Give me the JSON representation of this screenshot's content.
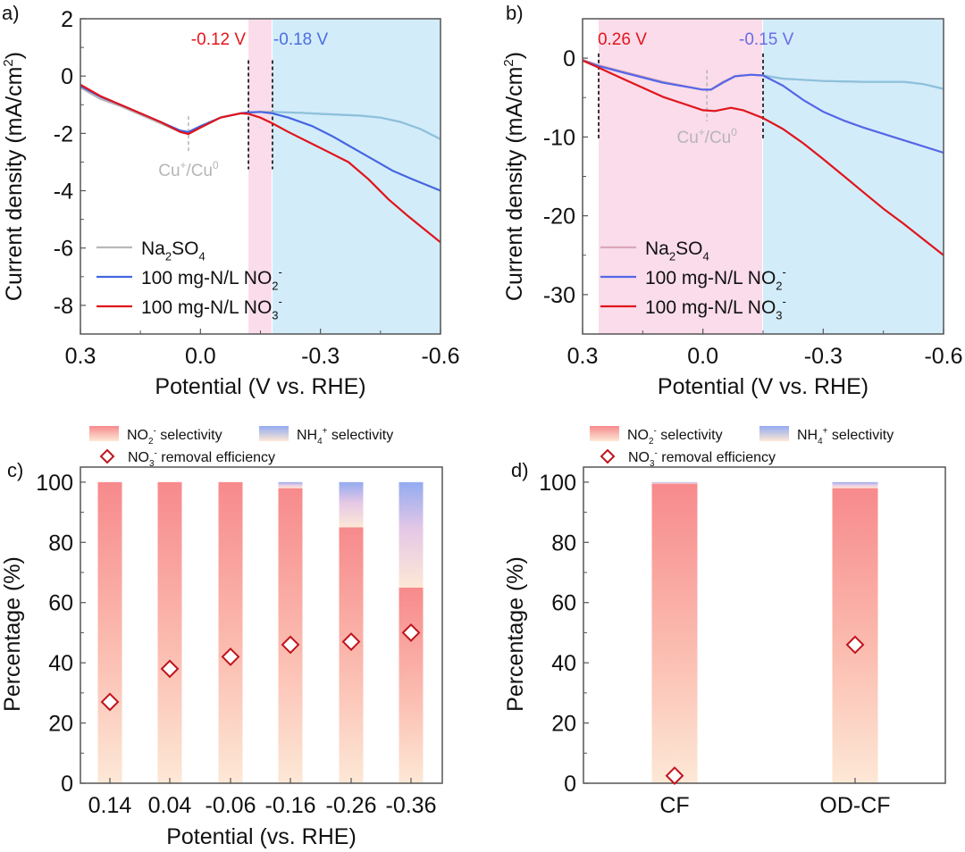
{
  "chart_data": [
    {
      "panel": "a)",
      "type": "line",
      "xlabel": "Potential (V vs. RHE)",
      "ylabel": "Current density (mA/cm²)",
      "xlim": [
        0.3,
        -0.6
      ],
      "ylim": [
        -9,
        2
      ],
      "xticks": [
        "0.3",
        "0.0",
        "-0.3",
        "-0.6"
      ],
      "xtick_values": [
        0.3,
        0.0,
        -0.3,
        -0.6
      ],
      "yticks": [
        "2",
        "0",
        "-2",
        "-4",
        "-6",
        "-8"
      ],
      "ytick_values": [
        2,
        0,
        -2,
        -4,
        -6,
        -8
      ],
      "regions": [
        {
          "name": "pink",
          "from": -0.12,
          "to": -0.18,
          "color": "#fadcea"
        },
        {
          "name": "blue",
          "from": -0.18,
          "to": -0.6,
          "color": "#d3ecfa"
        }
      ],
      "onset_labels": [
        {
          "text": "-0.12 V",
          "x": -0.12,
          "color": "#e5141b"
        },
        {
          "text": "-0.18 V",
          "x": -0.18,
          "color": "#4a6ee0"
        }
      ],
      "annotation": {
        "text": "Cu⁺/Cu⁰",
        "x": 0.03
      },
      "legend": [
        "Na₂SO₄",
        "100 mg-N/L NO₂⁻",
        "100 mg-N/L NO₃⁻"
      ],
      "series": [
        {
          "name": "Na₂SO₄",
          "color": "#b8b8b8",
          "color_after": "#8cc2de",
          "x": [
            0.3,
            0.25,
            0.2,
            0.15,
            0.1,
            0.05,
            0.03,
            0.0,
            -0.05,
            -0.1,
            -0.12,
            -0.15,
            -0.18,
            -0.25,
            -0.3,
            -0.35,
            -0.4,
            -0.45,
            -0.5,
            -0.55,
            -0.6
          ],
          "y": [
            -0.4,
            -0.8,
            -1.05,
            -1.35,
            -1.65,
            -1.95,
            -2.0,
            -1.8,
            -1.45,
            -1.3,
            -1.28,
            -1.25,
            -1.25,
            -1.28,
            -1.32,
            -1.35,
            -1.38,
            -1.45,
            -1.6,
            -1.85,
            -2.2
          ]
        },
        {
          "name": "100 mg-N/L NO₂⁻",
          "color": "#4466e0",
          "x": [
            0.3,
            0.25,
            0.2,
            0.15,
            0.1,
            0.05,
            0.03,
            0.0,
            -0.05,
            -0.1,
            -0.12,
            -0.15,
            -0.18,
            -0.22,
            -0.28,
            -0.33,
            -0.38,
            -0.43,
            -0.48,
            -0.53,
            -0.6
          ],
          "y": [
            -0.35,
            -0.72,
            -1.0,
            -1.3,
            -1.6,
            -1.9,
            -1.95,
            -1.75,
            -1.45,
            -1.3,
            -1.27,
            -1.25,
            -1.3,
            -1.45,
            -1.75,
            -2.1,
            -2.5,
            -2.9,
            -3.3,
            -3.6,
            -4.0
          ]
        },
        {
          "name": "100 mg-N/L NO₃⁻",
          "color": "#e0141b",
          "x": [
            0.3,
            0.25,
            0.2,
            0.15,
            0.1,
            0.05,
            0.03,
            0.0,
            -0.05,
            -0.1,
            -0.12,
            -0.15,
            -0.18,
            -0.22,
            -0.27,
            -0.32,
            -0.37,
            -0.42,
            -0.47,
            -0.52,
            -0.56,
            -0.6
          ],
          "y": [
            -0.3,
            -0.7,
            -1.0,
            -1.3,
            -1.6,
            -1.95,
            -2.02,
            -1.8,
            -1.45,
            -1.3,
            -1.32,
            -1.45,
            -1.65,
            -1.95,
            -2.3,
            -2.65,
            -3.0,
            -3.6,
            -4.3,
            -4.9,
            -5.35,
            -5.8
          ]
        }
      ]
    },
    {
      "panel": "b)",
      "type": "line",
      "xlabel": "Potential (V vs. RHE)",
      "ylabel": "Current density (mA/cm²)",
      "xlim": [
        0.3,
        -0.6
      ],
      "ylim": [
        -35,
        5
      ],
      "xticks": [
        "0.3",
        "0.0",
        "-0.3",
        "-0.6"
      ],
      "xtick_values": [
        0.3,
        0.0,
        -0.3,
        -0.6
      ],
      "yticks": [
        "0",
        "-10",
        "-20",
        "-30"
      ],
      "ytick_values": [
        0,
        -10,
        -20,
        -30
      ],
      "regions": [
        {
          "name": "pink",
          "from": 0.26,
          "to": -0.15,
          "color": "#fadcea"
        },
        {
          "name": "blue",
          "from": -0.15,
          "to": -0.6,
          "color": "#d3ecfa"
        }
      ],
      "onset_labels": [
        {
          "text": "0.26 V",
          "x": 0.26,
          "color": "#e5141b"
        },
        {
          "text": "-0.15 V",
          "x": -0.15,
          "color": "#6a6ae6"
        }
      ],
      "annotation": {
        "text": "Cu⁺/Cu⁰",
        "x": -0.01
      },
      "legend": [
        "Na₂SO₄",
        "100 mg-N/L NO₂⁻",
        "100 mg-N/L NO₃⁻"
      ],
      "series": [
        {
          "name": "Na₂SO₄",
          "color": "#d9a8b8",
          "color_after": "#8cc2de",
          "x": [
            0.3,
            0.26,
            0.2,
            0.1,
            0.0,
            -0.02,
            -0.05,
            -0.08,
            -0.12,
            -0.15,
            -0.2,
            -0.3,
            -0.4,
            -0.5,
            -0.55,
            -0.6
          ],
          "y": [
            -0.2,
            -0.9,
            -1.7,
            -3.0,
            -4.0,
            -4.0,
            -3.0,
            -2.3,
            -2.1,
            -2.2,
            -2.6,
            -2.9,
            -3.0,
            -3.0,
            -3.3,
            -3.9
          ]
        },
        {
          "name": "100 mg-N/L NO₂⁻",
          "color": "#5566e6",
          "x": [
            0.3,
            0.26,
            0.2,
            0.1,
            0.0,
            -0.02,
            -0.05,
            -0.08,
            -0.12,
            -0.15,
            -0.2,
            -0.25,
            -0.3,
            -0.35,
            -0.4,
            -0.5,
            -0.6
          ],
          "y": [
            -0.3,
            -1.0,
            -1.8,
            -3.1,
            -4.0,
            -4.0,
            -3.1,
            -2.3,
            -2.1,
            -2.2,
            -3.5,
            -5.3,
            -6.8,
            -7.9,
            -8.8,
            -10.4,
            -12.0
          ]
        },
        {
          "name": "100 mg-N/L NO₃⁻",
          "color": "#e0141b",
          "x": [
            0.3,
            0.26,
            0.2,
            0.1,
            0.0,
            -0.03,
            -0.07,
            -0.1,
            -0.15,
            -0.2,
            -0.25,
            -0.3,
            -0.35,
            -0.4,
            -0.45,
            -0.5,
            -0.55,
            -0.6
          ],
          "y": [
            -0.3,
            -1.2,
            -2.6,
            -4.9,
            -6.6,
            -6.7,
            -6.3,
            -6.6,
            -7.6,
            -9.0,
            -10.8,
            -12.8,
            -14.9,
            -17.0,
            -19.1,
            -21.0,
            -23.0,
            -25.0
          ]
        }
      ]
    },
    {
      "panel": "c)",
      "type": "bar",
      "stacked": true,
      "xlabel": "Potential (vs. RHE)",
      "ylabel": "Percentage (%)",
      "ylim": [
        0,
        105
      ],
      "yticks": [
        "0",
        "20",
        "40",
        "60",
        "80",
        "100"
      ],
      "ytick_values": [
        0,
        20,
        40,
        60,
        80,
        100
      ],
      "categories": [
        "0.14",
        "0.04",
        "-0.06",
        "-0.16",
        "-0.26",
        "-0.36"
      ],
      "series": [
        {
          "name": "NO₂⁻ selectivity",
          "values": [
            100,
            100,
            100,
            98,
            85,
            65
          ]
        },
        {
          "name": "NH₄⁺ selectivity",
          "values": [
            0,
            0,
            0,
            2,
            15,
            35
          ]
        },
        {
          "name": "NO₃⁻ removal efficiency",
          "marker": "diamond",
          "values": [
            27,
            38,
            42,
            46,
            47,
            50
          ]
        }
      ],
      "legend": [
        "NO₂⁻ selectivity",
        "NH₄⁺ selectivity",
        "NO₃⁻ removal efficiency"
      ],
      "legend_position": "top"
    },
    {
      "panel": "d)",
      "type": "bar",
      "stacked": true,
      "xlabel": "",
      "ylabel": "Percentage (%)",
      "ylim": [
        0,
        105
      ],
      "yticks": [
        "0",
        "20",
        "40",
        "60",
        "80",
        "100"
      ],
      "ytick_values": [
        0,
        20,
        40,
        60,
        80,
        100
      ],
      "categories": [
        "CF",
        "OD-CF"
      ],
      "series": [
        {
          "name": "NO₂⁻ selectivity",
          "values": [
            99.5,
            98
          ]
        },
        {
          "name": "NH₄⁺ selectivity",
          "values": [
            0.5,
            2
          ]
        },
        {
          "name": "NO₃⁻ removal efficiency",
          "marker": "diamond",
          "values": [
            2.5,
            46
          ]
        }
      ],
      "legend": [
        "NO₂⁻ selectivity",
        "NH₄⁺ selectivity",
        "NO₃⁻ removal efficiency"
      ],
      "legend_position": "top"
    }
  ],
  "colors": {
    "pink_region": "#fadcea",
    "blue_region": "#d3ecfa",
    "bar_red_top": "#f78a8c",
    "bar_peach_bottom": "#fde8d6",
    "bar_blue_top": "#94abf0",
    "diamond": "#c0141b",
    "axis": "#555555",
    "annotation_grey": "#b5b5b5"
  }
}
